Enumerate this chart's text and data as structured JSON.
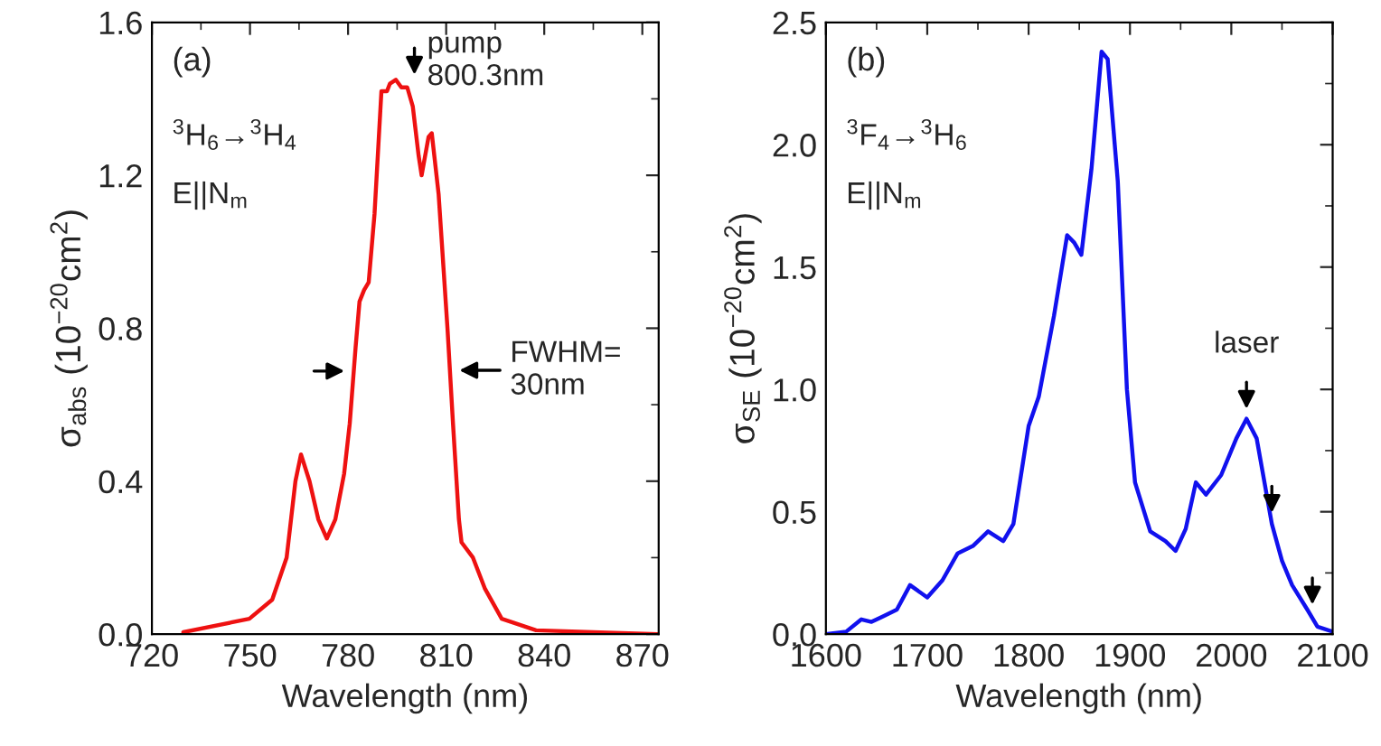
{
  "chart_data": [
    {
      "type": "line",
      "xlabel": "Wavelength (nm)",
      "ylabel": "σ$_{abs}$ (10$^{−20}$cm$^{2}$)",
      "series": [
        {
          "color": "#ee1111",
          "x": [
            729.6,
            749.8,
            756.8,
            761.2,
            763.9,
            765.6,
            768.2,
            770.9,
            773.5,
            776.1,
            778.8,
            780.5,
            782.3,
            783.5,
            784.9,
            786.3,
            788.1,
            790.2,
            791.9,
            792.8,
            794.6,
            796.3,
            798.1,
            799.8,
            801.6,
            802.5,
            804.6,
            805.6,
            807.7,
            810.4,
            812.1,
            813.9,
            814.7,
            818.2,
            821.8,
            827.0,
            837.5,
            855.0,
            874.7
          ],
          "values": [
            0.005,
            0.04,
            0.09,
            0.2,
            0.4,
            0.47,
            0.4,
            0.3,
            0.25,
            0.3,
            0.42,
            0.55,
            0.75,
            0.87,
            0.9,
            0.92,
            1.1,
            1.42,
            1.42,
            1.44,
            1.45,
            1.43,
            1.43,
            1.38,
            1.25,
            1.2,
            1.3,
            1.31,
            1.15,
            0.8,
            0.55,
            0.3,
            0.24,
            0.2,
            0.12,
            0.04,
            0.01,
            0.005,
            0.0
          ]
        }
      ],
      "xlim": [
        720,
        875
      ],
      "xticks": [
        720,
        750,
        780,
        810,
        840,
        870
      ],
      "ylim": [
        0,
        1.6
      ],
      "yticks": [
        {
          "value": 0,
          "label": "0.0"
        },
        0.4,
        0.8,
        1.2,
        1.6
      ],
      "marker": "none",
      "line_style": "solid",
      "grid": false,
      "legend": false,
      "annotations": [
        "(a)",
        "$^{3}$H$_{6}$→$^{3}$H$_{4}$",
        "E||N$_{m}$",
        {
          "text": "pump\n800.3nm",
          "x": 800.3,
          "y": 1.45
        },
        {
          "text": "FWHM=\n30nm",
          "x": 812.5,
          "y": 0.69
        }
      ]
    },
    {
      "type": "line",
      "xlabel": "Wavelength (nm)",
      "ylabel": "σ$_{SE}$ (10$^{−20}$cm$^{2}$)",
      "series": [
        {
          "color": "#1111ee",
          "x": [
            1600,
            1620,
            1635,
            1645,
            1655,
            1670,
            1683,
            1700,
            1715,
            1730,
            1745,
            1760,
            1775,
            1785,
            1800,
            1810,
            1825,
            1838,
            1845,
            1852,
            1862,
            1872,
            1878,
            1888,
            1897,
            1905,
            1920,
            1935,
            1945,
            1955,
            1965,
            1975,
            1990,
            2005,
            2015,
            2025,
            2040,
            2050,
            2060,
            2075,
            2085,
            2100
          ],
          "values": [
            0,
            0.01,
            0.06,
            0.05,
            0.07,
            0.1,
            0.2,
            0.15,
            0.22,
            0.33,
            0.36,
            0.42,
            0.38,
            0.45,
            0.85,
            0.97,
            1.3,
            1.63,
            1.6,
            1.55,
            1.9,
            2.38,
            2.35,
            1.85,
            1.0,
            0.62,
            0.42,
            0.38,
            0.34,
            0.43,
            0.62,
            0.57,
            0.65,
            0.8,
            0.88,
            0.8,
            0.45,
            0.3,
            0.2,
            0.1,
            0.03,
            0.01
          ]
        }
      ],
      "xlim": [
        1600,
        2100
      ],
      "xticks": [
        1600,
        1700,
        1800,
        1900,
        2000,
        2100
      ],
      "ylim": [
        0,
        2.5
      ],
      "yticks": [
        {
          "value": 0,
          "label": "0.0"
        },
        0.5,
        {
          "value": 1,
          "label": "1.0"
        },
        1.5,
        {
          "value": 2,
          "label": "2.0"
        },
        2.5
      ],
      "marker": "none",
      "line_style": "solid",
      "grid": false,
      "legend": false,
      "annotations": [
        "(b)",
        "$^{3}$F$_{4}$→$^{3}$H$_{6}$",
        "E||N$_{m}$",
        {
          "text": "laser",
          "x": 2015,
          "y": 0.9
        }
      ]
    }
  ]
}
